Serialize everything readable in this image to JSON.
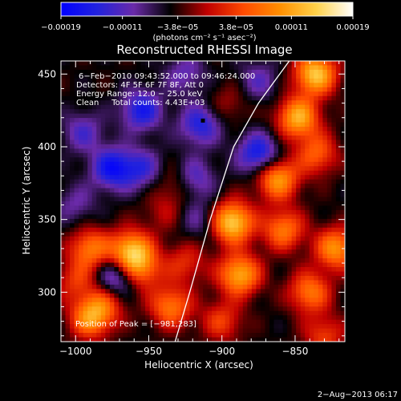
{
  "chart_data": {
    "type": "heatmap",
    "title": "Reconstructed RHESSI Image",
    "xlabel": "Heliocentric X (arcsec)",
    "ylabel": "Heliocentric Y (arcsec)",
    "xlim": [
      -1010,
      -816
    ],
    "ylim": [
      266,
      459
    ],
    "x_ticks": [
      -1000,
      -950,
      -900,
      -850
    ],
    "x_tick_labels": [
      "−1000",
      "−950",
      "−900",
      "−850"
    ],
    "y_ticks": [
      300,
      350,
      400,
      450
    ],
    "y_tick_labels": [
      "300",
      "350",
      "400",
      "450"
    ],
    "colorbar": {
      "range": [
        -0.00019,
        0.00019
      ],
      "tick_values": [
        -0.00019,
        -0.00011,
        -3.8e-05,
        3.8e-05,
        0.00011,
        0.00019
      ],
      "tick_labels": [
        "−0.00019",
        "−0.00011",
        "−3.8e−05",
        "3.8e−05",
        "0.00011",
        "0.00019"
      ],
      "unit_label": "(photons cm⁻² s⁻¹ asec⁻²)",
      "colors": [
        "#0000ff",
        "#2222dd",
        "#6a2aa8",
        "#000000",
        "#c00000",
        "#ff4a00",
        "#ff8f00",
        "#ffd24a",
        "#ffffff"
      ]
    },
    "annotations": {
      "time_range": "6−Feb−2010 09:43:52.000 to 09:46:24.000",
      "detectors": "Detectors: 4F 5F 6F 7F 8F, Att 0",
      "energy": "Energy Range: 12.0 − 25.0 keV",
      "algorithm": "Clean     Total counts: 4.43E+03",
      "peak": "Position of Peak = [−981,283]"
    },
    "peak_position": [
      -981,
      283
    ],
    "marker_position": [
      -913,
      418
    ],
    "limb_curve": [
      [
        -932,
        266
      ],
      [
        -922,
        300
      ],
      [
        -908,
        350
      ],
      [
        -892,
        400
      ],
      [
        -875,
        430
      ],
      [
        -854,
        459
      ]
    ],
    "blobs": [
      {
        "x": -990,
        "y": 330,
        "v": 0.00012
      },
      {
        "x": -962,
        "y": 328,
        "v": 0.00017
      },
      {
        "x": -955,
        "y": 315,
        "v": 0.0001
      },
      {
        "x": -990,
        "y": 282,
        "v": 0.00013
      },
      {
        "x": -980,
        "y": 292,
        "v": 8e-05
      },
      {
        "x": -935,
        "y": 290,
        "v": 0.00012
      },
      {
        "x": -925,
        "y": 320,
        "v": 7e-05
      },
      {
        "x": -893,
        "y": 348,
        "v": 0.00019
      },
      {
        "x": -888,
        "y": 312,
        "v": 0.00016
      },
      {
        "x": -900,
        "y": 280,
        "v": 8e-05
      },
      {
        "x": -862,
        "y": 378,
        "v": 0.00015
      },
      {
        "x": -858,
        "y": 343,
        "v": 0.00012
      },
      {
        "x": -848,
        "y": 420,
        "v": 0.00016
      },
      {
        "x": -836,
        "y": 450,
        "v": 0.00018
      },
      {
        "x": -835,
        "y": 395,
        "v": 0.0001
      },
      {
        "x": -840,
        "y": 300,
        "v": 0.00012
      },
      {
        "x": -822,
        "y": 330,
        "v": 0.00014
      },
      {
        "x": -830,
        "y": 270,
        "v": 8e-05
      },
      {
        "x": -930,
        "y": 375,
        "v": 6e-05
      },
      {
        "x": -940,
        "y": 355,
        "v": 4e-05
      },
      {
        "x": -895,
        "y": 430,
        "v": 4e-05
      },
      {
        "x": -1000,
        "y": 308,
        "v": 7e-05
      },
      {
        "x": -975,
        "y": 385,
        "v": -0.00012
      },
      {
        "x": -955,
        "y": 425,
        "v": -0.00011
      },
      {
        "x": -915,
        "y": 415,
        "v": -0.0001
      },
      {
        "x": -875,
        "y": 395,
        "v": -0.00012
      },
      {
        "x": -920,
        "y": 378,
        "v": -9e-05
      },
      {
        "x": -995,
        "y": 410,
        "v": -7e-05
      },
      {
        "x": -925,
        "y": 450,
        "v": -6e-05
      },
      {
        "x": -955,
        "y": 385,
        "v": -8e-05
      },
      {
        "x": -1000,
        "y": 360,
        "v": -5e-05
      },
      {
        "x": -875,
        "y": 445,
        "v": -6e-05
      },
      {
        "x": -972,
        "y": 310,
        "v": -0.0001
      },
      {
        "x": -915,
        "y": 350,
        "v": -5e-05
      }
    ]
  },
  "footer": {
    "timestamp": "2−Aug−2013 06:17"
  }
}
